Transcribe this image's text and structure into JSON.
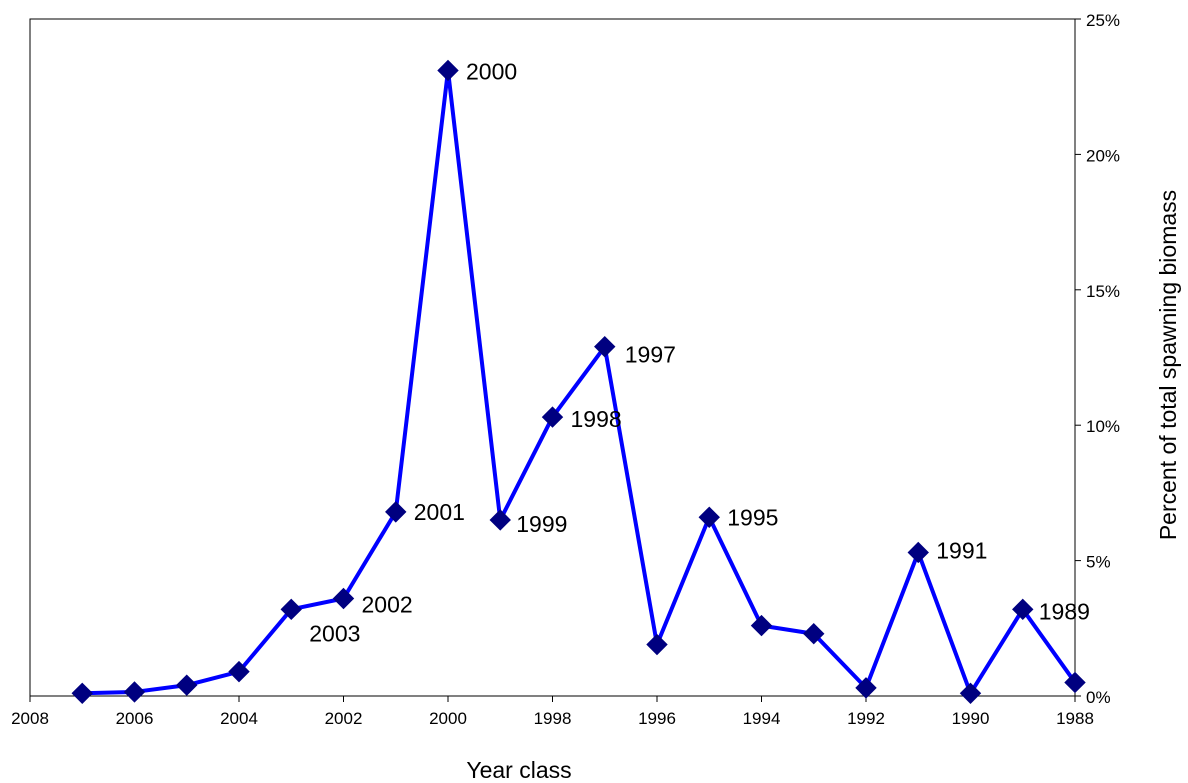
{
  "chart_data": {
    "type": "line",
    "title": "",
    "xlabel": "Year class",
    "ylabel": "Percent of total spawning biomass",
    "x_reversed": true,
    "xlim": [
      2008,
      1988
    ],
    "ylim": [
      0,
      25
    ],
    "x_ticks": [
      "2008",
      "2006",
      "2004",
      "2002",
      "2000",
      "1998",
      "1996",
      "1994",
      "1992",
      "1990",
      "1988"
    ],
    "y_ticks": [
      "0%",
      "5%",
      "10%",
      "15%",
      "20%",
      "25%"
    ],
    "y_axis_side": "right",
    "grid": false,
    "legend": "none",
    "line_color": "#0000ff",
    "marker_color": "#000080",
    "marker": "diamond",
    "series": [
      {
        "x": [
          2007,
          2006,
          2005,
          2004,
          2003,
          2002,
          2001,
          2000,
          1999,
          1998,
          1997,
          1996,
          1995,
          1994,
          1993,
          1992,
          1991,
          1990,
          1989,
          1988
        ],
        "y": [
          0.1,
          0.15,
          0.4,
          0.9,
          3.2,
          3.6,
          6.8,
          23.1,
          6.5,
          10.3,
          12.9,
          1.9,
          6.6,
          2.6,
          2.3,
          0.3,
          5.3,
          0.1,
          3.2,
          0.5
        ]
      }
    ],
    "point_labels": [
      {
        "x": 2003,
        "y": 3.2,
        "text": "2003"
      },
      {
        "x": 2002,
        "y": 3.6,
        "text": "2002"
      },
      {
        "x": 2001,
        "y": 6.8,
        "text": "2001"
      },
      {
        "x": 2000,
        "y": 23.1,
        "text": "2000"
      },
      {
        "x": 1999,
        "y": 6.5,
        "text": "1999"
      },
      {
        "x": 1998,
        "y": 10.3,
        "text": "1998"
      },
      {
        "x": 1997,
        "y": 12.9,
        "text": "1997"
      },
      {
        "x": 1995,
        "y": 6.6,
        "text": "1995"
      },
      {
        "x": 1991,
        "y": 5.3,
        "text": "1991"
      },
      {
        "x": 1989,
        "y": 3.2,
        "text": "1989"
      }
    ]
  }
}
